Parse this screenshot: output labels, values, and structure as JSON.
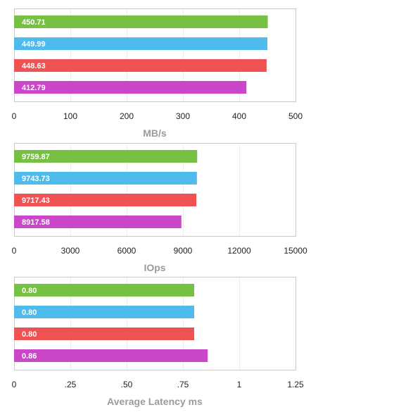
{
  "chart_data": [
    {
      "type": "bar",
      "orientation": "horizontal",
      "xlabel": "MB/s",
      "xlim": [
        0,
        500
      ],
      "ticks": [
        0,
        100,
        200,
        300,
        400,
        500
      ],
      "tick_labels": [
        "0",
        "100",
        "200",
        "300",
        "400",
        "500"
      ],
      "grid": true,
      "values": [
        450.71,
        449.99,
        448.63,
        412.79
      ],
      "value_labels": [
        "450.71",
        "449.99",
        "448.63",
        "412.79"
      ],
      "colors": [
        "#76c043",
        "#4dbbeb",
        "#ee5253",
        "#cc46c9"
      ]
    },
    {
      "type": "bar",
      "orientation": "horizontal",
      "xlabel": "IOps",
      "xlim": [
        0,
        15000
      ],
      "ticks": [
        0,
        3000,
        6000,
        9000,
        12000,
        15000
      ],
      "tick_labels": [
        "0",
        "3000",
        "6000",
        "9000",
        "12000",
        "15000"
      ],
      "grid": true,
      "values": [
        9759.87,
        9743.73,
        9717.43,
        8917.58
      ],
      "value_labels": [
        "9759.87",
        "9743.73",
        "9717.43",
        "8917.58"
      ],
      "colors": [
        "#76c043",
        "#4dbbeb",
        "#ee5253",
        "#cc46c9"
      ]
    },
    {
      "type": "bar",
      "orientation": "horizontal",
      "xlabel": "Average Latency ms",
      "xlim": [
        0,
        1.25
      ],
      "ticks": [
        0,
        0.25,
        0.5,
        0.75,
        1,
        1.25
      ],
      "tick_labels": [
        "0",
        ".25",
        ".50",
        ".75",
        "1",
        "1.25"
      ],
      "grid": true,
      "values": [
        0.8,
        0.8,
        0.8,
        0.86
      ],
      "value_labels": [
        "0.80",
        "0.80",
        "0.80",
        "0.86"
      ],
      "colors": [
        "#76c043",
        "#4dbbeb",
        "#ee5253",
        "#cc46c9"
      ]
    }
  ]
}
